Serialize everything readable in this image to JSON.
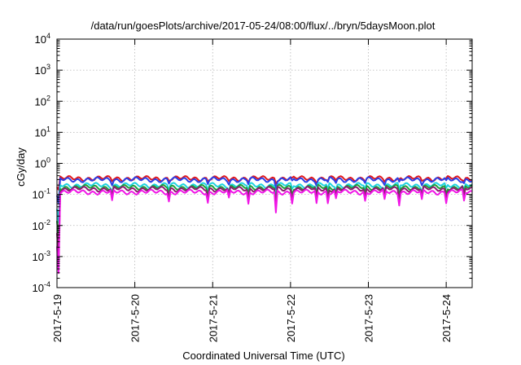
{
  "chart_data": {
    "type": "line",
    "title": "/data/run/goesPlots/archive/2017-05-24/08:00/flux/../bryn/5daysMoon.plot",
    "xlabel": "Coordinated Universal Time (UTC)",
    "ylabel": "cGy/day",
    "yscale": "log",
    "ylim": [
      0.0001,
      10000
    ],
    "xlim": [
      "2017-05-19T00:00",
      "2017-05-24T08:00"
    ],
    "x_ticks": [
      "2017-5-19",
      "2017-5-20",
      "2017-5-21",
      "2017-5-22",
      "2017-5-23",
      "2017-5-24"
    ],
    "y_ticks": [
      {
        "base": "10",
        "exp": "-4"
      },
      {
        "base": "10",
        "exp": "-3"
      },
      {
        "base": "10",
        "exp": "-2"
      },
      {
        "base": "10",
        "exp": "-1"
      },
      {
        "base": "10",
        "exp": "0"
      },
      {
        "base": "10",
        "exp": "1"
      },
      {
        "base": "10",
        "exp": "2"
      },
      {
        "base": "10",
        "exp": "3"
      },
      {
        "base": "10",
        "exp": "4"
      }
    ],
    "grid": true,
    "dips": [
      {
        "t": "2017-05-19T00:00",
        "factor": 0.02
      },
      {
        "t": "2017-05-19T00:20",
        "factor": 0.003
      },
      {
        "t": "2017-05-19T17:00",
        "factor": 0.45
      },
      {
        "t": "2017-05-20T10:30",
        "factor": 0.5
      },
      {
        "t": "2017-05-20T22:30",
        "factor": 0.45
      },
      {
        "t": "2017-05-21T05:00",
        "factor": 0.55
      },
      {
        "t": "2017-05-21T11:00",
        "factor": 0.4
      },
      {
        "t": "2017-05-21T19:30",
        "factor": 0.2
      },
      {
        "t": "2017-05-22T00:30",
        "factor": 0.5
      },
      {
        "t": "2017-05-22T08:00",
        "factor": 0.4
      },
      {
        "t": "2017-05-22T11:30",
        "factor": 0.45
      },
      {
        "t": "2017-05-22T14:00",
        "factor": 0.55
      },
      {
        "t": "2017-05-22T23:00",
        "factor": 0.5
      },
      {
        "t": "2017-05-23T05:00",
        "factor": 0.5
      },
      {
        "t": "2017-05-23T09:30",
        "factor": 0.45
      },
      {
        "t": "2017-05-23T16:30",
        "factor": 0.5
      },
      {
        "t": "2017-05-24T00:00",
        "factor": 0.5
      },
      {
        "t": "2017-05-24T05:30",
        "factor": 0.5
      }
    ],
    "series": [
      {
        "color": "#e0161b",
        "base": 0.33
      },
      {
        "color": "#2b3ee6",
        "base": 0.3
      },
      {
        "color": "#1ed3e0",
        "base": 0.2
      },
      {
        "color": "#1e9e3a",
        "base": 0.17
      },
      {
        "color": "#8a1d6e",
        "base": 0.15
      },
      {
        "color": "#f016e6",
        "base": 0.12
      }
    ]
  }
}
